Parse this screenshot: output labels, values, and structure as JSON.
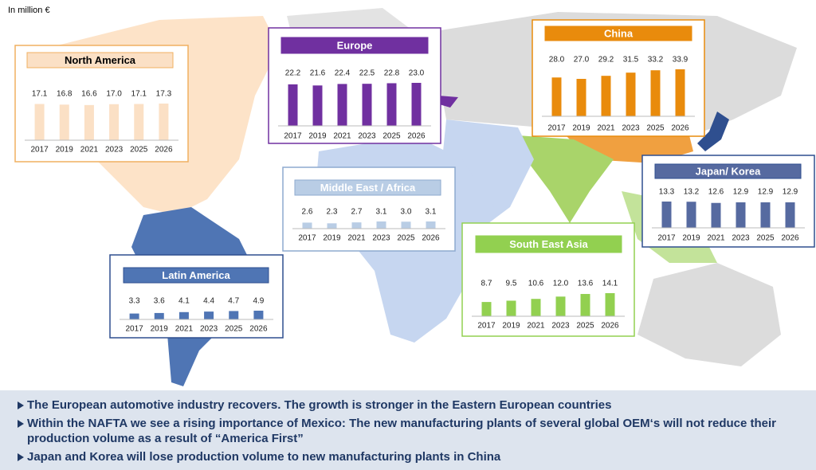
{
  "unit_note": "In million €",
  "chart_data": [
    {
      "type": "bar",
      "title": "North America",
      "color": "#fbe0c5",
      "border_color": "#f0b060",
      "title_text_color": "#000000",
      "categories": [
        "2017",
        "2019",
        "2021",
        "2023",
        "2025",
        "2026"
      ],
      "values": [
        17.1,
        16.8,
        16.6,
        17.0,
        17.1,
        17.3
      ],
      "value_labels": [
        "17.1",
        "16.8",
        "16.6",
        "17.0",
        "17.1",
        "17.3"
      ]
    },
    {
      "type": "bar",
      "title": "Europe",
      "color": "#7030a0",
      "border_color": "#7030a0",
      "title_text_color": "#ffffff",
      "categories": [
        "2017",
        "2019",
        "2021",
        "2023",
        "2025",
        "2026"
      ],
      "values": [
        22.2,
        21.6,
        22.4,
        22.5,
        22.8,
        23.0
      ],
      "value_labels": [
        "22.2",
        "21.6",
        "22.4",
        "22.5",
        "22.8",
        "23.0"
      ]
    },
    {
      "type": "bar",
      "title": "China",
      "color": "#e98b0c",
      "border_color": "#e98b0c",
      "title_text_color": "#ffffff",
      "categories": [
        "2017",
        "2019",
        "2021",
        "2023",
        "2025",
        "2026"
      ],
      "values": [
        28.0,
        27.0,
        29.2,
        31.5,
        33.2,
        33.9
      ],
      "value_labels": [
        "28.0",
        "27.0",
        "29.2",
        "31.5",
        "33.2",
        "33.9"
      ]
    },
    {
      "type": "bar",
      "title": "Middle East / Africa",
      "color": "#b9cde5",
      "border_color": "#8eaacf",
      "title_text_color": "#ffffff",
      "categories": [
        "2017",
        "2019",
        "2021",
        "2023",
        "2025",
        "2026"
      ],
      "values": [
        2.6,
        2.3,
        2.7,
        3.1,
        3.0,
        3.1
      ],
      "value_labels": [
        "2.6",
        "2.3",
        "2.7",
        "3.1",
        "3.0",
        "3.1"
      ]
    },
    {
      "type": "bar",
      "title": "Latin America",
      "color": "#4f75b4",
      "border_color": "#2f4f8f",
      "title_text_color": "#ffffff",
      "categories": [
        "2017",
        "2019",
        "2021",
        "2023",
        "2025",
        "2026"
      ],
      "values": [
        3.3,
        3.6,
        4.1,
        4.4,
        4.7,
        4.9
      ],
      "value_labels": [
        "3.3",
        "3.6",
        "4.1",
        "4.4",
        "4.7",
        "4.9"
      ]
    },
    {
      "type": "bar",
      "title": "South East Asia",
      "color": "#92d050",
      "border_color": "#92d050",
      "title_text_color": "#ffffff",
      "categories": [
        "2017",
        "2019",
        "2021",
        "2023",
        "2025",
        "2026"
      ],
      "values": [
        8.7,
        9.5,
        10.6,
        12.0,
        13.6,
        14.1
      ],
      "value_labels": [
        "8.7",
        "9.5",
        "10.6",
        "12.0",
        "13.6",
        "14.1"
      ]
    },
    {
      "type": "bar",
      "title": "Japan/ Korea",
      "color": "#566aa0",
      "border_color": "#2f4f8f",
      "title_text_color": "#ffffff",
      "categories": [
        "2017",
        "2019",
        "2021",
        "2023",
        "2025",
        "2026"
      ],
      "values": [
        13.3,
        13.2,
        12.6,
        12.9,
        12.9,
        12.9
      ],
      "value_labels": [
        "13.3",
        "13.2",
        "12.6",
        "12.9",
        "12.9",
        "12.9"
      ]
    }
  ],
  "bullets": [
    "The European automotive industry recovers. The growth is stronger in the Eastern European countries",
    "Within the NAFTA we see a rising importance of Mexico: The new manufacturing plants of several global OEM‘s will not reduce their production volume as a result of “America First”",
    "Japan and Korea will lose production volume to new  manufacturing plants in China"
  ]
}
